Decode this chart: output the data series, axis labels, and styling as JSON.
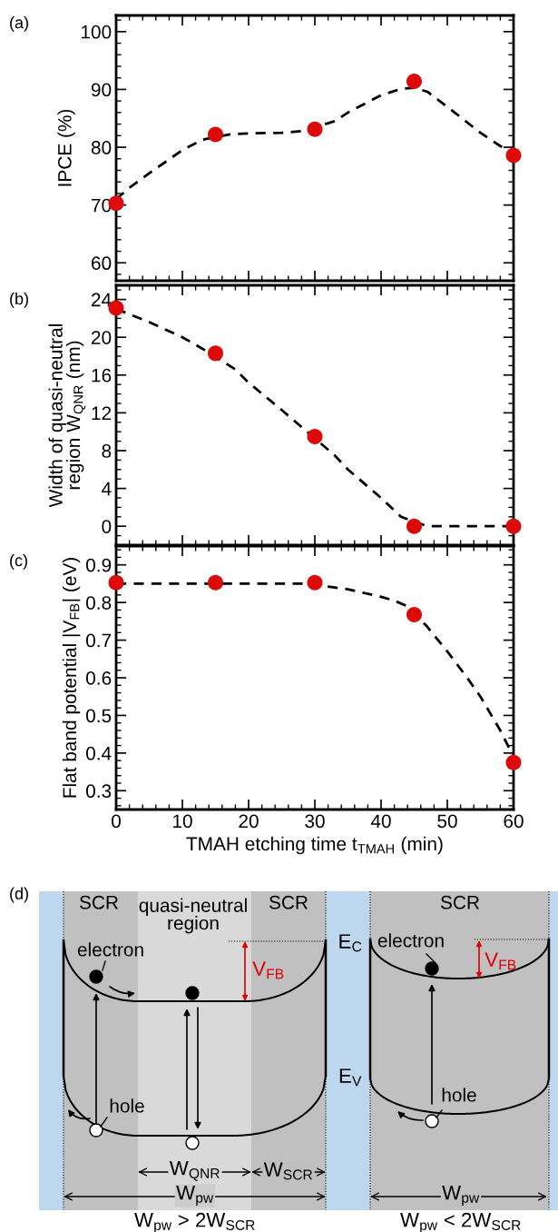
{
  "chart_data": [
    {
      "type": "line",
      "ylabel": "IPCE (%)",
      "annotations": [
        "(a)"
      ],
      "tick_labels": "y",
      "x": [
        0,
        15,
        30,
        45,
        60
      ],
      "xlim": [
        0,
        60
      ],
      "xticks": [
        0,
        {
          "value": 2,
          "label": null
        },
        {
          "value": 4,
          "label": null
        },
        {
          "value": 6,
          "label": null
        },
        {
          "value": 8,
          "label": null
        },
        10,
        {
          "value": 12,
          "label": null
        },
        {
          "value": 14,
          "label": null
        },
        {
          "value": 16,
          "label": null
        },
        {
          "value": 18,
          "label": null
        },
        20,
        {
          "value": 22,
          "label": null
        },
        {
          "value": 24,
          "label": null
        },
        {
          "value": 26,
          "label": null
        },
        {
          "value": 28,
          "label": null
        },
        30,
        {
          "value": 32,
          "label": null
        },
        {
          "value": 34,
          "label": null
        },
        {
          "value": 36,
          "label": null
        },
        {
          "value": 38,
          "label": null
        },
        40,
        {
          "value": 42,
          "label": null
        },
        {
          "value": 44,
          "label": null
        },
        {
          "value": 46,
          "label": null
        },
        {
          "value": 48,
          "label": null
        },
        50,
        {
          "value": 52,
          "label": null
        },
        {
          "value": 54,
          "label": null
        },
        {
          "value": 56,
          "label": null
        },
        {
          "value": 58,
          "label": null
        },
        60
      ],
      "ylim": [
        56.9,
        102.8
      ],
      "yticks": [
        {
          "value": 58,
          "label": null
        },
        60,
        {
          "value": 62,
          "label": null
        },
        {
          "value": 64,
          "label": null
        },
        {
          "value": 66,
          "label": null
        },
        {
          "value": 68,
          "label": null
        },
        70,
        {
          "value": 72,
          "label": null
        },
        {
          "value": 74,
          "label": null
        },
        {
          "value": 76,
          "label": null
        },
        {
          "value": 78,
          "label": null
        },
        80,
        {
          "value": 82,
          "label": null
        },
        {
          "value": 84,
          "label": null
        },
        {
          "value": 86,
          "label": null
        },
        {
          "value": 88,
          "label": null
        },
        90,
        {
          "value": 92,
          "label": null
        },
        {
          "value": 94,
          "label": null
        },
        {
          "value": 96,
          "label": null
        },
        {
          "value": 98,
          "label": null
        },
        100,
        {
          "value": 102,
          "label": null
        }
      ],
      "series": [
        {
          "type": "line",
          "x": [
            0,
            2,
            5,
            10,
            13,
            17,
            20,
            25,
            28,
            33,
            35,
            40,
            43,
            45,
            47,
            50,
            55,
            58,
            60
          ],
          "values": [
            71,
            73,
            75.5,
            79.5,
            81.3,
            82.2,
            82.4,
            82.5,
            82.8,
            84.5,
            86,
            89,
            90.1,
            90.3,
            89.6,
            87,
            82.5,
            80.2,
            79
          ],
          "color": "#000000",
          "line_style": "dashed",
          "marker": "none"
        },
        {
          "type": "scatter",
          "values": [
            70.3,
            82.2,
            83.1,
            91.4,
            78.6
          ],
          "color": "#dd0a0a",
          "marker": "circle"
        }
      ]
    },
    {
      "type": "line",
      "ylabel": "Width of quasi-neutral\nregion W$_{QNR}$ (nm)",
      "annotations": [
        "(b)"
      ],
      "tick_labels": "y",
      "x": [
        0,
        15,
        30,
        45,
        60
      ],
      "xlim": [
        0,
        60
      ],
      "xticks": [
        0,
        {
          "value": 2,
          "label": null
        },
        {
          "value": 4,
          "label": null
        },
        {
          "value": 6,
          "label": null
        },
        {
          "value": 8,
          "label": null
        },
        10,
        {
          "value": 12,
          "label": null
        },
        {
          "value": 14,
          "label": null
        },
        {
          "value": 16,
          "label": null
        },
        {
          "value": 18,
          "label": null
        },
        20,
        {
          "value": 22,
          "label": null
        },
        {
          "value": 24,
          "label": null
        },
        {
          "value": 26,
          "label": null
        },
        {
          "value": 28,
          "label": null
        },
        30,
        {
          "value": 32,
          "label": null
        },
        {
          "value": 34,
          "label": null
        },
        {
          "value": 36,
          "label": null
        },
        {
          "value": 38,
          "label": null
        },
        40,
        {
          "value": 42,
          "label": null
        },
        {
          "value": 44,
          "label": null
        },
        {
          "value": 46,
          "label": null
        },
        {
          "value": 48,
          "label": null
        },
        50,
        {
          "value": 52,
          "label": null
        },
        {
          "value": 54,
          "label": null
        },
        {
          "value": 56,
          "label": null
        },
        {
          "value": 58,
          "label": null
        },
        60
      ],
      "ylim": [
        -2,
        25.5
      ],
      "yticks": [
        {
          "value": -1,
          "label": null
        },
        0,
        {
          "value": 1,
          "label": null
        },
        {
          "value": 2,
          "label": null
        },
        {
          "value": 3,
          "label": null
        },
        4,
        {
          "value": 5,
          "label": null
        },
        {
          "value": 6,
          "label": null
        },
        {
          "value": 7,
          "label": null
        },
        8,
        {
          "value": 9,
          "label": null
        },
        {
          "value": 10,
          "label": null
        },
        {
          "value": 11,
          "label": null
        },
        12,
        {
          "value": 13,
          "label": null
        },
        {
          "value": 14,
          "label": null
        },
        {
          "value": 15,
          "label": null
        },
        16,
        {
          "value": 17,
          "label": null
        },
        {
          "value": 18,
          "label": null
        },
        {
          "value": 19,
          "label": null
        },
        20,
        {
          "value": 21,
          "label": null
        },
        {
          "value": 22,
          "label": null
        },
        {
          "value": 23,
          "label": null
        },
        24,
        {
          "value": 25,
          "label": null
        }
      ],
      "series": [
        {
          "type": "line",
          "x": [
            0,
            5,
            10,
            13,
            18,
            20,
            25,
            28,
            33,
            35,
            40,
            43,
            47,
            52,
            60
          ],
          "values": [
            23,
            21.6,
            20,
            18.8,
            16.6,
            15.2,
            12.3,
            10.5,
            7.5,
            6,
            3,
            1,
            0,
            0,
            0
          ],
          "color": "#000000",
          "line_style": "dashed",
          "marker": "none"
        },
        {
          "type": "scatter",
          "values": [
            23.1,
            18.3,
            9.5,
            0,
            0
          ],
          "color": "#dd0a0a",
          "marker": "circle"
        }
      ]
    },
    {
      "type": "line",
      "ylabel": "Flat band potential |V$_{FB}$| (eV)",
      "xlabel": "TMAH etching time t$_{TMAH}$ (min)",
      "annotations": [
        "(c)"
      ],
      "x": [
        0,
        15,
        30,
        45,
        60
      ],
      "xlim": [
        0,
        60
      ],
      "xticks": [
        0,
        {
          "value": 2,
          "label": null
        },
        {
          "value": 4,
          "label": null
        },
        {
          "value": 6,
          "label": null
        },
        {
          "value": 8,
          "label": null
        },
        10,
        {
          "value": 12,
          "label": null
        },
        {
          "value": 14,
          "label": null
        },
        {
          "value": 16,
          "label": null
        },
        {
          "value": 18,
          "label": null
        },
        20,
        {
          "value": 22,
          "label": null
        },
        {
          "value": 24,
          "label": null
        },
        {
          "value": 26,
          "label": null
        },
        {
          "value": 28,
          "label": null
        },
        30,
        {
          "value": 32,
          "label": null
        },
        {
          "value": 34,
          "label": null
        },
        {
          "value": 36,
          "label": null
        },
        {
          "value": 38,
          "label": null
        },
        40,
        {
          "value": 42,
          "label": null
        },
        {
          "value": 44,
          "label": null
        },
        {
          "value": 46,
          "label": null
        },
        {
          "value": 48,
          "label": null
        },
        50,
        {
          "value": 52,
          "label": null
        },
        {
          "value": 54,
          "label": null
        },
        {
          "value": 56,
          "label": null
        },
        {
          "value": 58,
          "label": null
        },
        60
      ],
      "ylim": [
        0.25,
        0.95
      ],
      "yticks": [
        {
          "value": 0.26,
          "label": null
        },
        {
          "value": 0.28,
          "label": null
        },
        0.3,
        {
          "value": 0.32,
          "label": null
        },
        {
          "value": 0.34,
          "label": null
        },
        {
          "value": 0.36,
          "label": null
        },
        {
          "value": 0.38,
          "label": null
        },
        0.4,
        {
          "value": 0.42,
          "label": null
        },
        {
          "value": 0.44,
          "label": null
        },
        {
          "value": 0.46,
          "label": null
        },
        {
          "value": 0.48,
          "label": null
        },
        0.5,
        {
          "value": 0.52,
          "label": null
        },
        {
          "value": 0.54,
          "label": null
        },
        {
          "value": 0.56,
          "label": null
        },
        {
          "value": 0.58,
          "label": null
        },
        0.6,
        {
          "value": 0.62,
          "label": null
        },
        {
          "value": 0.64,
          "label": null
        },
        {
          "value": 0.66,
          "label": null
        },
        {
          "value": 0.68,
          "label": null
        },
        0.7,
        {
          "value": 0.72,
          "label": null
        },
        {
          "value": 0.74,
          "label": null
        },
        {
          "value": 0.76,
          "label": null
        },
        {
          "value": 0.78,
          "label": null
        },
        0.8,
        {
          "value": 0.82,
          "label": null
        },
        {
          "value": 0.84,
          "label": null
        },
        {
          "value": 0.86,
          "label": null
        },
        {
          "value": 0.88,
          "label": null
        },
        0.9,
        {
          "value": 0.92,
          "label": null
        },
        {
          "value": 0.94,
          "label": null
        }
      ],
      "series": [
        {
          "type": "line",
          "x": [
            0,
            10,
            20,
            28,
            33,
            35,
            40,
            42,
            44,
            47,
            50,
            53,
            55,
            58,
            60
          ],
          "values": [
            0.85,
            0.85,
            0.85,
            0.85,
            0.84,
            0.835,
            0.815,
            0.805,
            0.79,
            0.735,
            0.67,
            0.6,
            0.55,
            0.46,
            0.39
          ],
          "color": "#000000",
          "line_style": "dashed",
          "marker": "none"
        },
        {
          "type": "scatter",
          "values": [
            0.853,
            0.853,
            0.853,
            0.768,
            0.375
          ],
          "color": "#dd0a0a",
          "marker": "circle"
        }
      ]
    },
    {
      "type": "other",
      "annotations": [
        "(d)",
        "SCR",
        "quasi-neutral\nregion",
        "SCR",
        "electron",
        "hole",
        "V$_{FB}$",
        "E$_{C}$",
        "E$_{V}$",
        "W$_{QNR}$",
        "W$_{SCR}$",
        "W$_{pw}$",
        "W$_{pw}$ > 2W$_{SCR}$",
        "SCR",
        "electron",
        "V$_{FB}$",
        "hole",
        "W$_{pw}$",
        "W$_{pw}$ < 2W$_{SCR}$"
      ]
    }
  ]
}
